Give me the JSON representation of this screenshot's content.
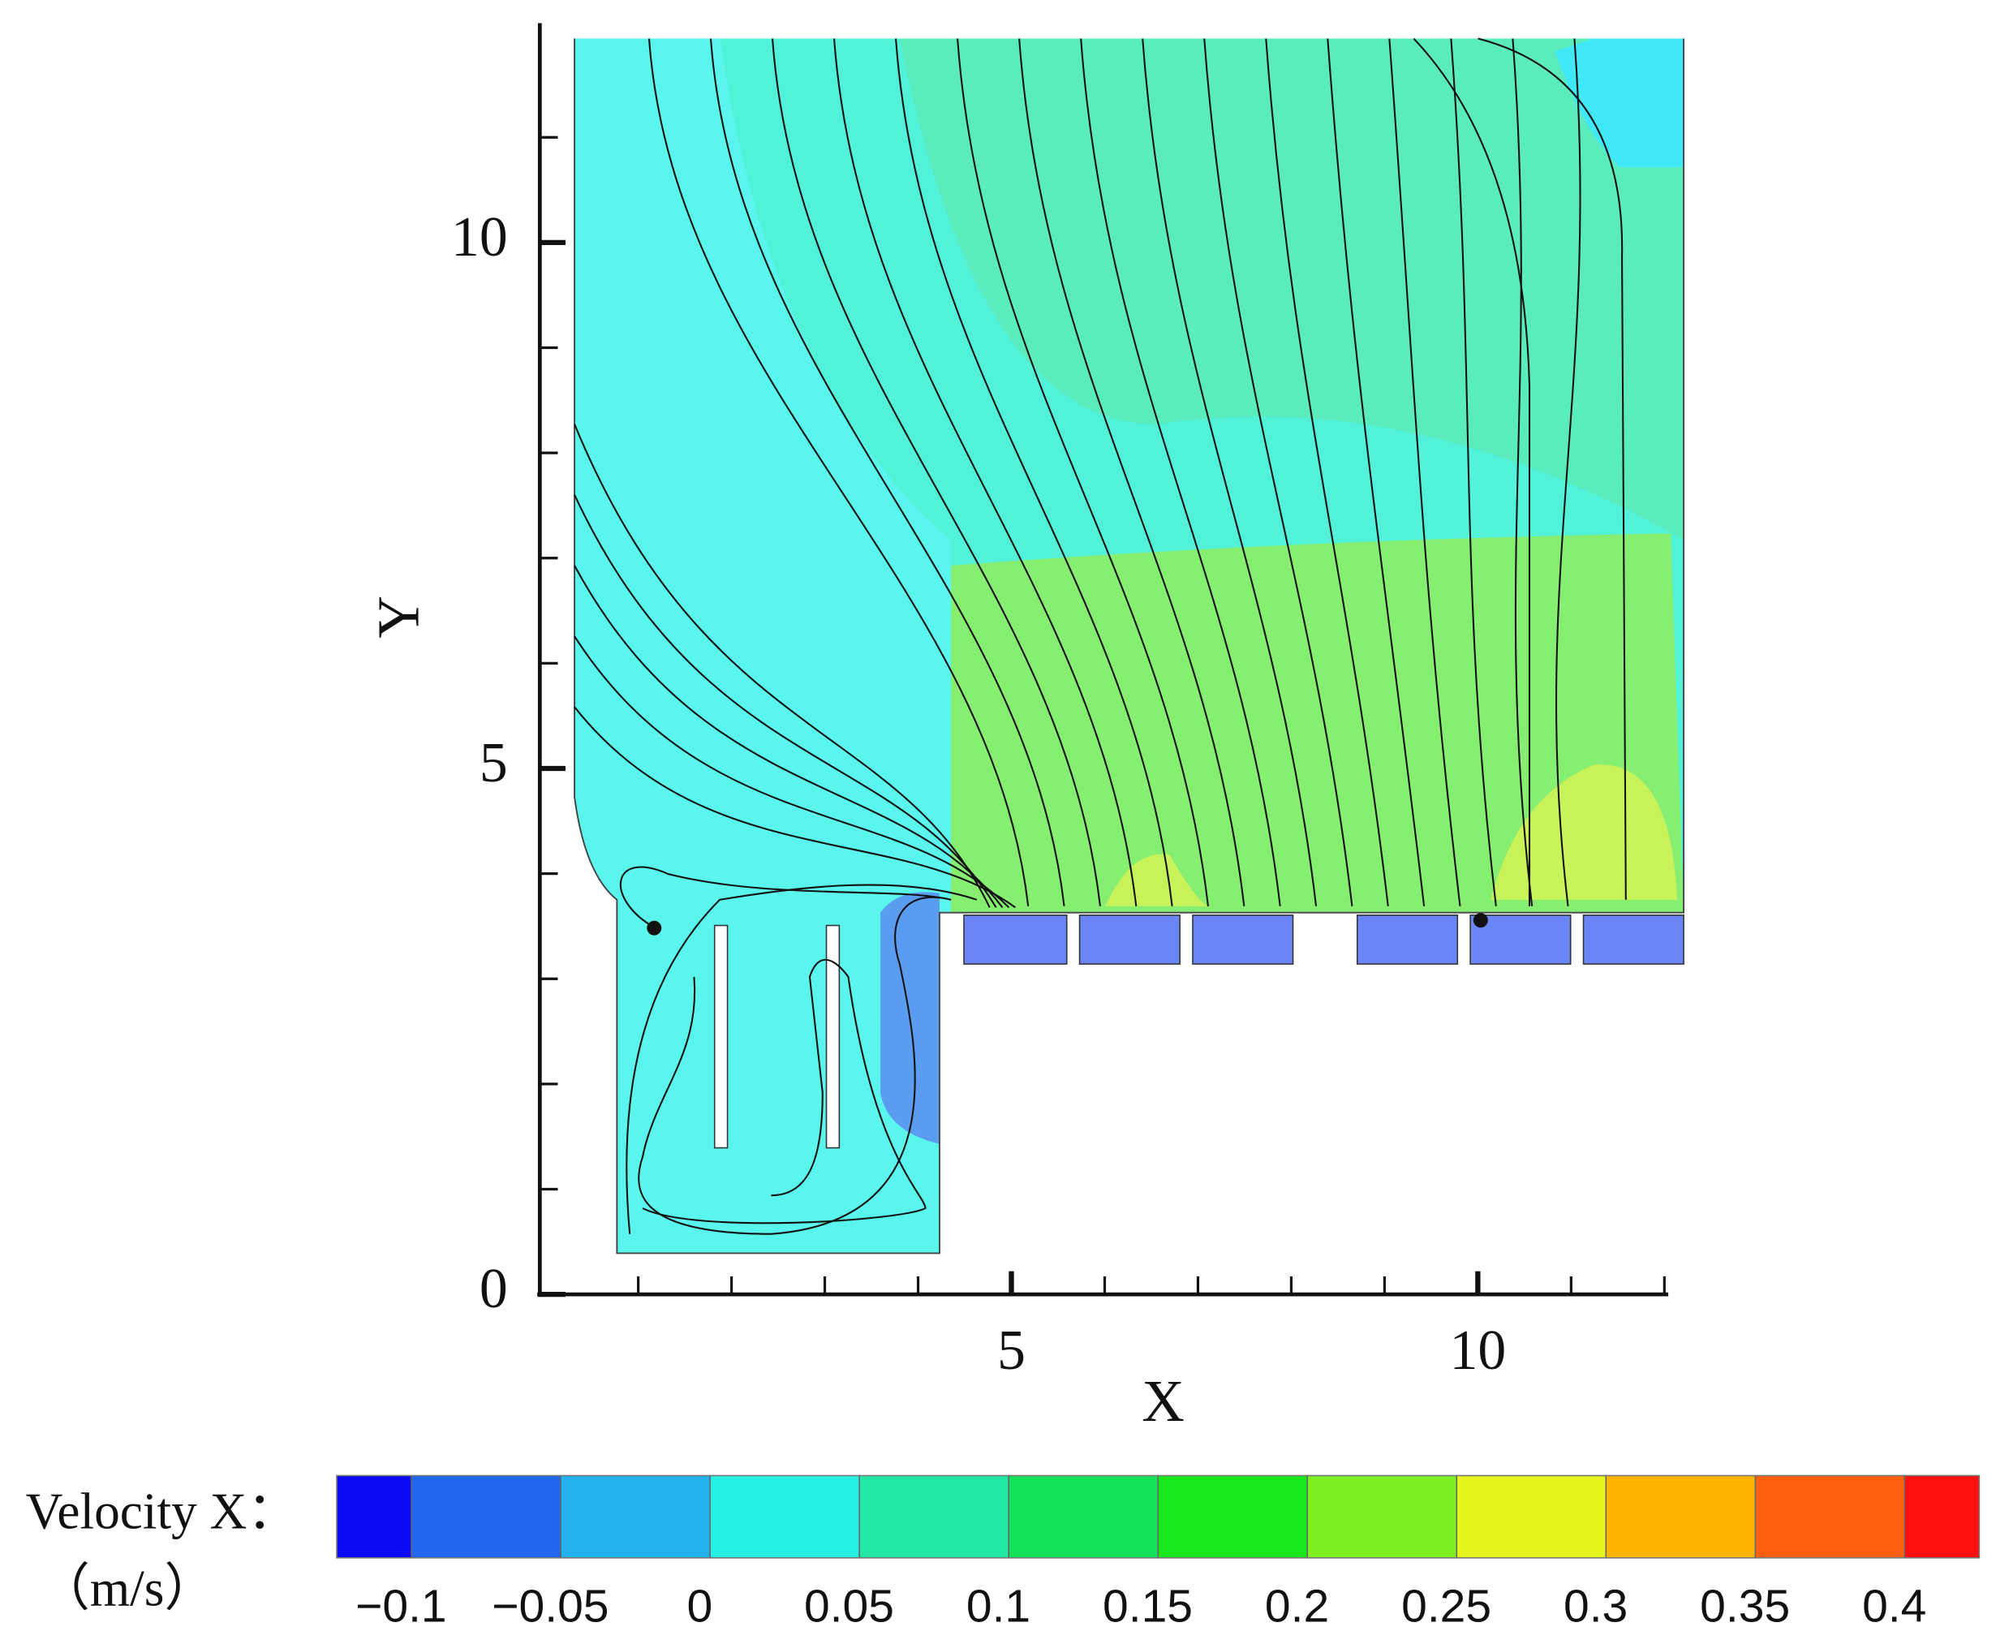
{
  "chart_data": {
    "type": "contour",
    "x_label": "X",
    "y_label": "Y",
    "xlim": [
      0,
      12
    ],
    "ylim": [
      0,
      12
    ],
    "xticks": [
      5,
      10
    ],
    "yticks": [
      0,
      5,
      10
    ],
    "xminorticks": [
      1,
      2,
      3,
      4,
      6,
      7,
      8,
      9,
      11,
      12
    ],
    "yminorticks": [
      1,
      2,
      3,
      4,
      6,
      7,
      8,
      9,
      11
    ],
    "colorbar": {
      "label": "Velocity X：",
      "unit": "（m/s）",
      "lim": [
        -0.125,
        0.425
      ],
      "ticks": [
        {
          "value": -0.1,
          "label": "−0.1"
        },
        {
          "value": -0.05,
          "label": "−0.05"
        },
        0,
        0.05,
        0.1,
        0.15,
        0.2,
        0.25,
        0.3,
        0.35,
        0.4
      ],
      "colors": [
        "#0a0af5",
        "#2266ee",
        "#22b2ee",
        "#26f0e4",
        "#22eaa6",
        "#14e25a",
        "#18e81c",
        "#7cf020",
        "#e6f51e",
        "#ffb400",
        "#ff6010",
        "#ff1010"
      ]
    }
  }
}
